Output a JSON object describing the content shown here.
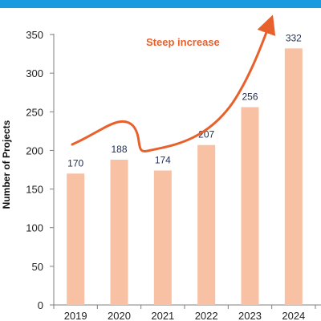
{
  "chart_data": {
    "type": "bar",
    "categories": [
      "2019",
      "2020",
      "2021",
      "2022",
      "2023",
      "2024"
    ],
    "values": [
      170,
      188,
      174,
      207,
      256,
      332
    ],
    "title": "",
    "xlabel": "",
    "ylabel": "Number of Projects",
    "ylim": [
      0,
      350
    ],
    "yticks": [
      0,
      50,
      100,
      150,
      200,
      250,
      300,
      350
    ],
    "grid": false,
    "legend": "none",
    "annotation": "Steep increase",
    "colors": {
      "bar": "#f9c1a3",
      "trend_arrow": "#e8612c",
      "data_label": "#1f2d50",
      "header_band": "#1a9be0"
    }
  }
}
